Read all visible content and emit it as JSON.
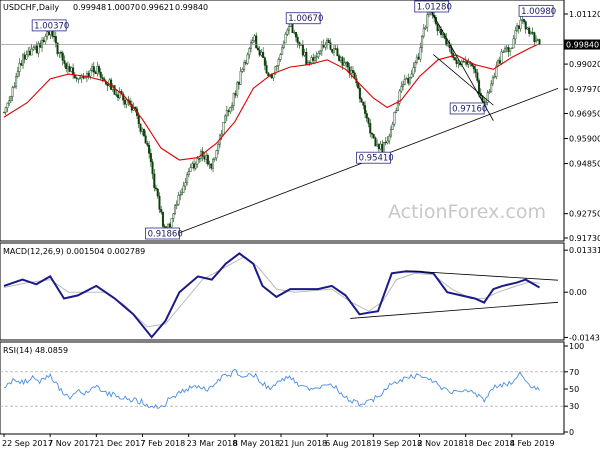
{
  "chart_data": [
    {
      "type": "candlestick",
      "title": "USDCHF,Daily",
      "ohlc": [
        "0.99948",
        "1.00070",
        "0.99621",
        "0.99840"
      ],
      "last_price": 0.9984,
      "last_label": "0.99840",
      "ylim": [
        0.9173,
        1.0112
      ],
      "yticks": [
        {
          "value": 1.0112,
          "label": "1.01120"
        },
        {
          "value": 0.9902,
          "label": "0.99020"
        },
        {
          "value": 0.9797,
          "label": "0.97970"
        },
        {
          "value": 0.9695,
          "label": "0.96950"
        },
        {
          "value": 0.959,
          "label": "0.95900"
        },
        {
          "value": 0.9485,
          "label": "0.94850"
        },
        {
          "value": 0.9275,
          "label": "0.92750"
        },
        {
          "value": 0.9173,
          "label": "0.91730"
        }
      ],
      "annotations": [
        {
          "label": "1.00370",
          "value": 1.0037
        },
        {
          "label": "1.00670",
          "value": 1.0067
        },
        {
          "label": "1.01280",
          "value": 1.0128
        },
        {
          "label": "1.00980",
          "value": 1.0098
        },
        {
          "label": "0.97160",
          "value": 0.9716
        },
        {
          "label": "0.95410",
          "value": 0.9541
        },
        {
          "label": "0.91860",
          "value": 0.9186
        }
      ],
      "path": [
        [
          0,
          0.97
        ],
        [
          8,
          0.992
        ],
        [
          15,
          0.997
        ],
        [
          20,
          1.0037
        ],
        [
          26,
          0.99
        ],
        [
          32,
          0.985
        ],
        [
          40,
          0.988
        ],
        [
          48,
          0.979
        ],
        [
          56,
          0.972
        ],
        [
          62,
          0.955
        ],
        [
          66,
          0.936
        ],
        [
          70,
          0.9186
        ],
        [
          74,
          0.93
        ],
        [
          80,
          0.945
        ],
        [
          86,
          0.953
        ],
        [
          90,
          0.947
        ],
        [
          94,
          0.962
        ],
        [
          100,
          0.978
        ],
        [
          104,
          0.99
        ],
        [
          108,
          1.002
        ],
        [
          112,
          0.992
        ],
        [
          116,
          0.984
        ],
        [
          120,
          0.995
        ],
        [
          124,
          1.0067
        ],
        [
          128,
          0.998
        ],
        [
          132,
          0.99
        ],
        [
          136,
          0.996
        ],
        [
          140,
          0.999
        ],
        [
          146,
          0.992
        ],
        [
          152,
          0.985
        ],
        [
          156,
          0.97
        ],
        [
          160,
          0.958
        ],
        [
          164,
          0.9541
        ],
        [
          168,
          0.965
        ],
        [
          172,
          0.98
        ],
        [
          176,
          0.985
        ],
        [
          180,
          0.995
        ],
        [
          184,
          1.0128
        ],
        [
          188,
          1.005
        ],
        [
          192,
          0.998
        ],
        [
          196,
          0.99
        ],
        [
          200,
          0.993
        ],
        [
          204,
          0.986
        ],
        [
          208,
          0.9716
        ],
        [
          212,
          0.985
        ],
        [
          216,
          0.995
        ],
        [
          220,
          0.998
        ],
        [
          224,
          1.0098
        ],
        [
          228,
          1.003
        ],
        [
          232,
          0.9984
        ]
      ],
      "ma": [
        [
          0,
          0.968
        ],
        [
          10,
          0.974
        ],
        [
          20,
          0.984
        ],
        [
          28,
          0.986
        ],
        [
          36,
          0.985
        ],
        [
          44,
          0.983
        ],
        [
          52,
          0.977
        ],
        [
          60,
          0.967
        ],
        [
          68,
          0.955
        ],
        [
          76,
          0.95
        ],
        [
          84,
          0.951
        ],
        [
          92,
          0.957
        ],
        [
          100,
          0.966
        ],
        [
          108,
          0.98
        ],
        [
          116,
          0.986
        ],
        [
          124,
          0.989
        ],
        [
          132,
          0.99
        ],
        [
          140,
          0.992
        ],
        [
          148,
          0.988
        ],
        [
          154,
          0.982
        ],
        [
          160,
          0.976
        ],
        [
          166,
          0.972
        ],
        [
          172,
          0.975
        ],
        [
          180,
          0.985
        ],
        [
          188,
          0.992
        ],
        [
          196,
          0.994
        ],
        [
          204,
          0.99
        ],
        [
          212,
          0.988
        ],
        [
          220,
          0.993
        ],
        [
          228,
          0.997
        ],
        [
          232,
          0.9988
        ]
      ],
      "lines": [
        {
          "x1": 70,
          "y1": 0.9173,
          "x2": 240,
          "y2": 0.98
        },
        {
          "x1": 185,
          "y1": 1.0125,
          "x2": 212,
          "y2": 0.9665
        },
        {
          "x1": 186,
          "y1": 0.9942,
          "x2": 212,
          "y2": 0.973
        }
      ]
    },
    {
      "type": "line",
      "title": "MACD(12,26,9) 0.001504 0.002789",
      "ylim": [
        -0.0145,
        0.014
      ],
      "yticks": [
        {
          "value": 0.01331,
          "label": "0.013319"
        },
        {
          "value": 0.0,
          "label": "0.00"
        },
        {
          "value": -0.01432,
          "label": "-0.014323"
        }
      ],
      "macd": [
        [
          0,
          0.002
        ],
        [
          8,
          0.004
        ],
        [
          14,
          0.0025
        ],
        [
          20,
          0.005
        ],
        [
          26,
          -0.002
        ],
        [
          32,
          -0.001
        ],
        [
          40,
          0.002
        ],
        [
          48,
          -0.002
        ],
        [
          56,
          -0.007
        ],
        [
          64,
          -0.0142
        ],
        [
          70,
          -0.009
        ],
        [
          76,
          0.0
        ],
        [
          84,
          0.005
        ],
        [
          90,
          0.004
        ],
        [
          96,
          0.009
        ],
        [
          102,
          0.0123
        ],
        [
          108,
          0.009
        ],
        [
          112,
          0.002
        ],
        [
          118,
          -0.0015
        ],
        [
          124,
          0.001
        ],
        [
          130,
          0.001
        ],
        [
          136,
          0.001
        ],
        [
          142,
          0.002
        ],
        [
          148,
          -0.001
        ],
        [
          154,
          -0.007
        ],
        [
          158,
          -0.0065
        ],
        [
          162,
          -0.006
        ],
        [
          168,
          0.006
        ],
        [
          174,
          0.0066
        ],
        [
          180,
          0.0065
        ],
        [
          186,
          0.006
        ],
        [
          192,
          0.0
        ],
        [
          198,
          -0.001
        ],
        [
          204,
          -0.002
        ],
        [
          208,
          -0.0033
        ],
        [
          212,
          0.001
        ],
        [
          216,
          0.002
        ],
        [
          222,
          0.003
        ],
        [
          226,
          0.004
        ],
        [
          232,
          0.0015
        ]
      ],
      "signal": [
        [
          0,
          0.0015
        ],
        [
          10,
          0.003
        ],
        [
          20,
          0.004
        ],
        [
          28,
          0.0
        ],
        [
          36,
          0.0
        ],
        [
          44,
          0.0
        ],
        [
          52,
          -0.004
        ],
        [
          62,
          -0.011
        ],
        [
          70,
          -0.01
        ],
        [
          78,
          -0.003
        ],
        [
          86,
          0.004
        ],
        [
          96,
          0.008
        ],
        [
          104,
          0.0112
        ],
        [
          110,
          0.008
        ],
        [
          118,
          0.001
        ],
        [
          126,
          0.0
        ],
        [
          134,
          0.0005
        ],
        [
          142,
          0.001
        ],
        [
          150,
          -0.003
        ],
        [
          158,
          -0.006
        ],
        [
          164,
          -0.003
        ],
        [
          170,
          0.004
        ],
        [
          178,
          0.006
        ],
        [
          186,
          0.0055
        ],
        [
          194,
          0.001
        ],
        [
          202,
          -0.002
        ],
        [
          208,
          -0.002
        ],
        [
          214,
          0.0
        ],
        [
          222,
          0.002
        ],
        [
          228,
          0.0033
        ],
        [
          232,
          0.0028
        ]
      ],
      "lines": [
        {
          "x1": 174,
          "y1": 0.0068,
          "x2": 240,
          "y2": 0.0038
        },
        {
          "x1": 150,
          "y1": -0.0083,
          "x2": 240,
          "y2": -0.0032
        }
      ]
    },
    {
      "type": "line",
      "title": "RSI(14) 48.0859",
      "ylim": [
        0,
        100
      ],
      "yticks": [
        {
          "value": 100,
          "label": "100"
        },
        {
          "value": 70,
          "label": "70"
        },
        {
          "value": 50,
          "label": "50"
        },
        {
          "value": 30,
          "label": "30"
        },
        {
          "value": 0,
          "label": "0"
        }
      ],
      "levels": [
        70,
        30
      ],
      "rsi": [
        [
          0,
          52
        ],
        [
          4,
          60
        ],
        [
          8,
          57
        ],
        [
          12,
          63
        ],
        [
          16,
          58
        ],
        [
          20,
          65
        ],
        [
          24,
          50
        ],
        [
          28,
          40
        ],
        [
          32,
          48
        ],
        [
          36,
          45
        ],
        [
          40,
          52
        ],
        [
          44,
          46
        ],
        [
          48,
          42
        ],
        [
          54,
          38
        ],
        [
          60,
          35
        ],
        [
          64,
          30
        ],
        [
          68,
          28
        ],
        [
          72,
          40
        ],
        [
          78,
          48
        ],
        [
          84,
          55
        ],
        [
          88,
          50
        ],
        [
          94,
          62
        ],
        [
          100,
          70
        ],
        [
          104,
          65
        ],
        [
          108,
          68
        ],
        [
          112,
          55
        ],
        [
          116,
          52
        ],
        [
          120,
          58
        ],
        [
          124,
          65
        ],
        [
          128,
          55
        ],
        [
          132,
          50
        ],
        [
          136,
          52
        ],
        [
          140,
          57
        ],
        [
          144,
          50
        ],
        [
          148,
          40
        ],
        [
          152,
          35
        ],
        [
          156,
          31
        ],
        [
          160,
          38
        ],
        [
          164,
          46
        ],
        [
          168,
          56
        ],
        [
          172,
          60
        ],
        [
          176,
          64
        ],
        [
          180,
          66
        ],
        [
          184,
          62
        ],
        [
          188,
          55
        ],
        [
          192,
          47
        ],
        [
          196,
          45
        ],
        [
          200,
          50
        ],
        [
          204,
          44
        ],
        [
          208,
          38
        ],
        [
          212,
          52
        ],
        [
          216,
          56
        ],
        [
          220,
          58
        ],
        [
          224,
          68
        ],
        [
          228,
          55
        ],
        [
          232,
          48
        ]
      ]
    }
  ],
  "x_axis": {
    "xmax": 240,
    "ticks": [
      {
        "x": 0,
        "label": "22 Sep 2017"
      },
      {
        "x": 20,
        "label": "7 Nov 2017"
      },
      {
        "x": 40,
        "label": "21 Dec 2017"
      },
      {
        "x": 60,
        "label": "7 Feb 2018"
      },
      {
        "x": 80,
        "label": "23 Mar 2018"
      },
      {
        "x": 100,
        "label": "8 May 2018"
      },
      {
        "x": 120,
        "label": "21 Jun 2018"
      },
      {
        "x": 140,
        "label": "6 Aug 2018"
      },
      {
        "x": 160,
        "label": "19 Sep 2018"
      },
      {
        "x": 180,
        "label": "2 Nov 2018"
      },
      {
        "x": 200,
        "label": "18 Dec 2018"
      },
      {
        "x": 220,
        "label": "4 Feb 2019"
      }
    ]
  },
  "watermark": "ActionForex.com",
  "colors": {
    "candle_up": "#e8e8e8",
    "candle_down": "#0a3e0a",
    "ma": "#e00000",
    "macd": "#1a1a88",
    "signal": "#bbbbbb",
    "rsi": "#4a8ee0",
    "trend": "#000000",
    "label_border": "#2a2a88"
  }
}
